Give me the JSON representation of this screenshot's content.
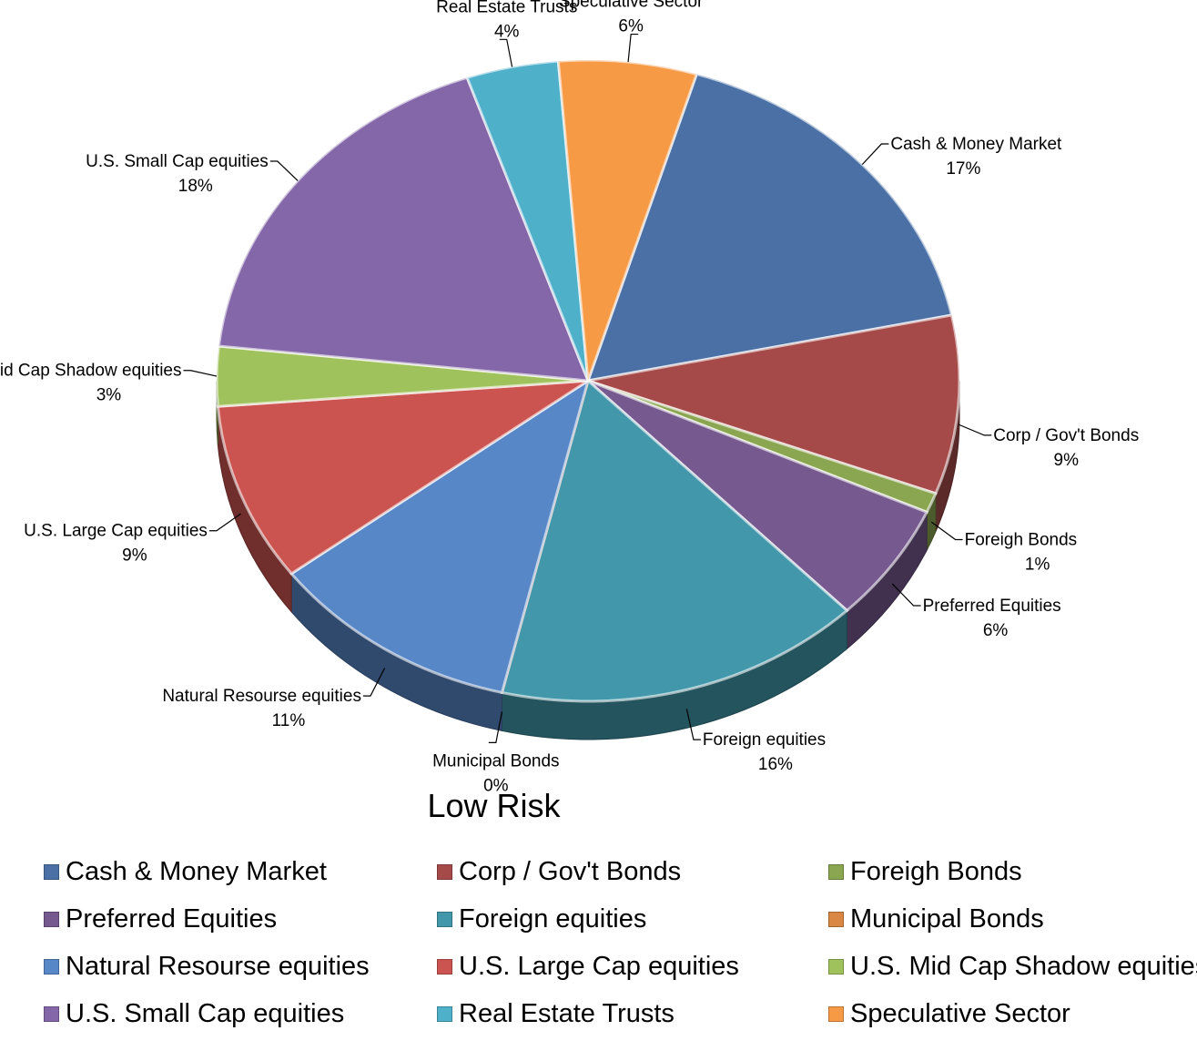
{
  "chart_data": {
    "type": "pie",
    "title": "Low Risk",
    "slices": [
      {
        "label": "Cash & Money Market",
        "value": 17,
        "display": "17%",
        "color": "#4A70A5"
      },
      {
        "label": "Corp / Gov't Bonds",
        "value": 9,
        "display": "9%",
        "color": "#A54A48"
      },
      {
        "label": "Foreigh Bonds",
        "value": 1,
        "display": "1%",
        "color": "#8AA650"
      },
      {
        "label": "Preferred Equities",
        "value": 6,
        "display": "6%",
        "color": "#76598F"
      },
      {
        "label": "Foreign equities",
        "value": 16,
        "display": "16%",
        "color": "#4298AA"
      },
      {
        "label": "Municipal Bonds",
        "value": 0,
        "display": "0%",
        "color": "#D98742"
      },
      {
        "label": "Natural Resourse equities",
        "value": 11,
        "display": "11%",
        "color": "#5887C8"
      },
      {
        "label": "U.S. Large Cap equities",
        "value": 9,
        "display": "9%",
        "color": "#CC5450"
      },
      {
        "label": "U.S. Mid Cap Shadow equities",
        "value": 3,
        "display": "3%",
        "color": "#A0C25C"
      },
      {
        "label": "U.S. Small Cap equities",
        "value": 18,
        "display": "18%",
        "color": "#8467A8"
      },
      {
        "label": "Real Estate Trusts",
        "value": 4,
        "display": "4%",
        "color": "#4FB0CA"
      },
      {
        "label": "Speculative Sector",
        "value": 6,
        "display": "6%",
        "color": "#F79A46"
      }
    ],
    "legend_position": "bottom"
  }
}
